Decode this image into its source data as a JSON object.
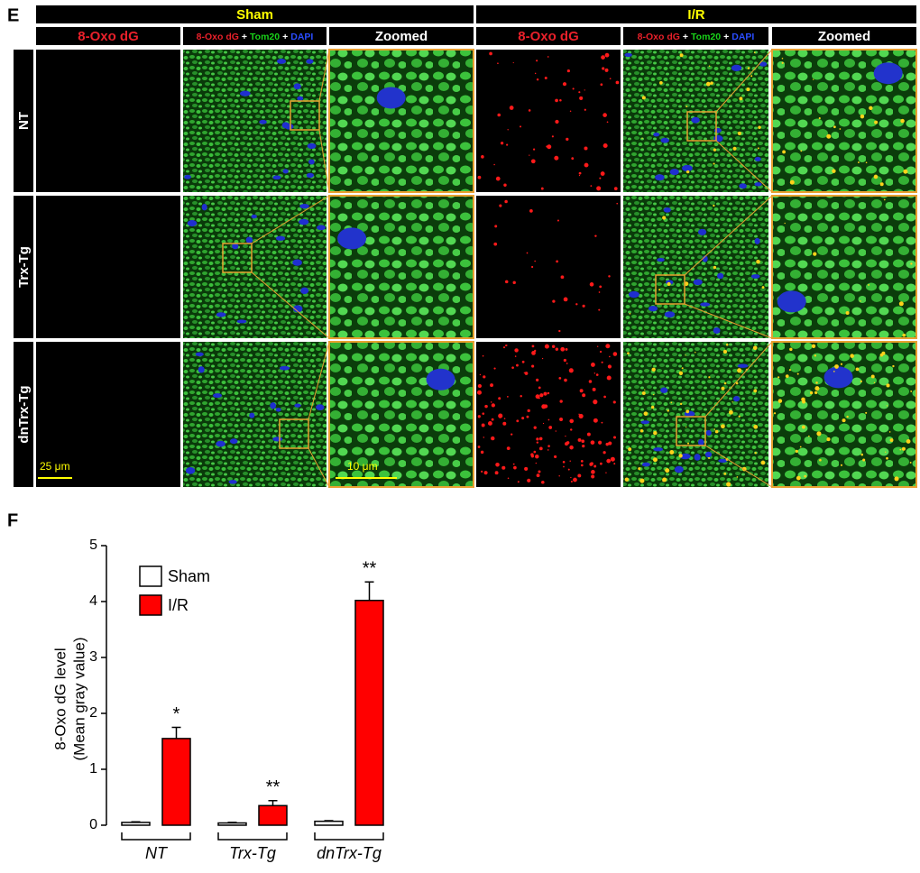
{
  "panel_e": {
    "label": "E",
    "groups": [
      {
        "name": "Sham",
        "headers": [
          "8-Oxo dG",
          [
            "8-Oxo dG",
            "+",
            "Tom20",
            "+",
            "DAPI"
          ],
          "Zoomed"
        ]
      },
      {
        "name": "I/R",
        "headers": [
          "8-Oxo dG",
          [
            "8-Oxo dG",
            "+",
            "Tom20",
            "+",
            "DAPI"
          ],
          "Zoomed"
        ]
      }
    ],
    "row_labels": [
      "NT",
      "Trx-Tg",
      "dnTrx-Tg"
    ],
    "scale_bars": [
      "25 μm",
      "10 μm"
    ]
  },
  "chart_data": {
    "type": "bar",
    "panel_label": "F",
    "y_label": [
      "8-Oxo dG level",
      "(Mean gray value)"
    ],
    "categories": [
      "NT",
      "Trx-Tg",
      "dnTrx-Tg"
    ],
    "series": [
      {
        "name": "Sham",
        "color": "#ffffff",
        "values": [
          0.05,
          0.04,
          0.07
        ],
        "errors": [
          0.01,
          0.01,
          0.01
        ]
      },
      {
        "name": "I/R",
        "color": "#ff0000",
        "values": [
          1.55,
          0.35,
          4.02
        ],
        "errors": [
          0.2,
          0.09,
          0.33
        ],
        "annotations": [
          "*",
          "**",
          "**"
        ]
      }
    ],
    "ylim": [
      0,
      5
    ],
    "yticks": [
      0,
      1,
      2,
      3,
      4,
      5
    ]
  }
}
